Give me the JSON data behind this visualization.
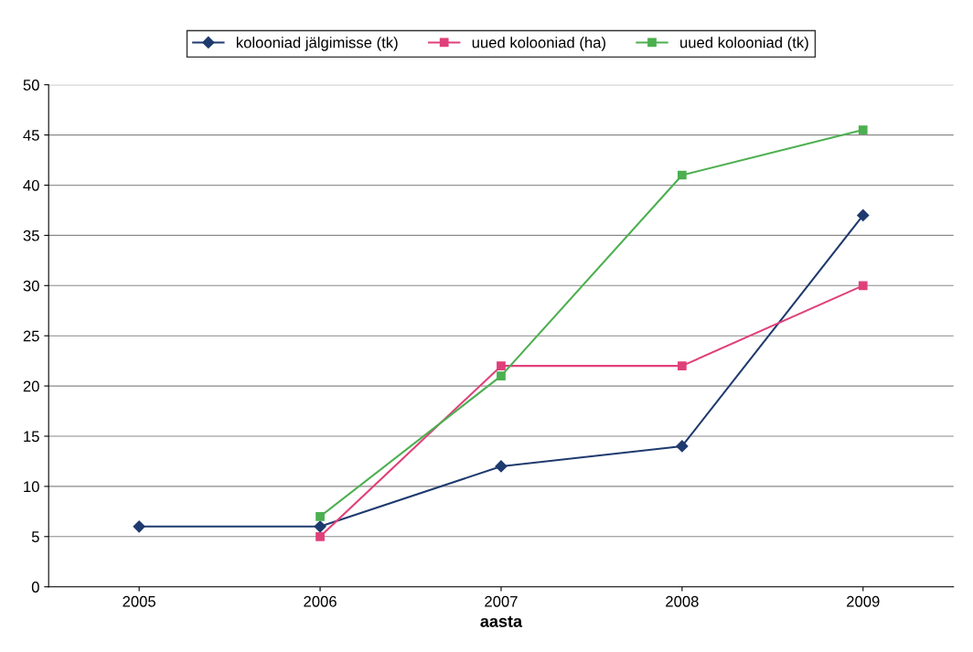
{
  "chart_data": {
    "type": "line",
    "xlabel": "aasta",
    "categories": [
      "2005",
      "2006",
      "2007",
      "2008",
      "2009"
    ],
    "series": [
      {
        "name": "kolooniad jälgimisse (tk)",
        "color": "#1f3a6e",
        "marker": "diamond",
        "values": [
          6,
          6,
          12,
          14,
          37
        ]
      },
      {
        "name": "uued kolooniad (ha)",
        "color": "#e0407a",
        "marker": "square",
        "values": [
          null,
          5,
          22,
          22,
          30
        ]
      },
      {
        "name": "uued kolooniad (tk)",
        "color": "#4caf50",
        "marker": "square",
        "values": [
          null,
          7,
          21,
          41,
          45.5
        ]
      }
    ],
    "ylim": [
      0,
      50
    ],
    "yticks": [
      0,
      5,
      10,
      15,
      20,
      25,
      30,
      35,
      40,
      45,
      50
    ],
    "grid": "y",
    "legend": "top",
    "line_style": "solid"
  }
}
